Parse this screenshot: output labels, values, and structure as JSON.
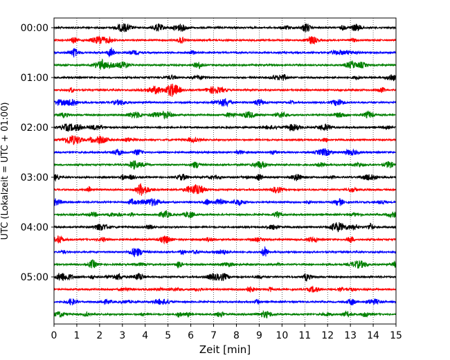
{
  "chart_data": {
    "type": "line",
    "title": "",
    "xlabel": "Zeit  [min]",
    "ylabel": "UTC (Lokalzeit = UTC + 01:00)",
    "xlim": [
      0,
      15
    ],
    "x_ticks": [
      "0",
      "1",
      "2",
      "3",
      "4",
      "5",
      "6",
      "7",
      "8",
      "9",
      "10",
      "11",
      "12",
      "13",
      "14",
      "15"
    ],
    "y_ticks": [
      "00:00",
      "01:00",
      "02:00",
      "03:00",
      "04:00",
      "05:00"
    ],
    "trace_interval_min": 15,
    "trace_colors": [
      "#000000",
      "#ff0000",
      "#0000ff",
      "#008000"
    ],
    "traces": [
      {
        "start": "00:00",
        "color": "#000000"
      },
      {
        "start": "00:15",
        "color": "#ff0000"
      },
      {
        "start": "00:30",
        "color": "#0000ff"
      },
      {
        "start": "00:45",
        "color": "#008000"
      },
      {
        "start": "01:00",
        "color": "#000000"
      },
      {
        "start": "01:15",
        "color": "#ff0000"
      },
      {
        "start": "01:30",
        "color": "#0000ff"
      },
      {
        "start": "01:45",
        "color": "#008000"
      },
      {
        "start": "02:00",
        "color": "#000000"
      },
      {
        "start": "02:15",
        "color": "#ff0000"
      },
      {
        "start": "02:30",
        "color": "#0000ff"
      },
      {
        "start": "02:45",
        "color": "#008000"
      },
      {
        "start": "03:00",
        "color": "#000000"
      },
      {
        "start": "03:15",
        "color": "#ff0000"
      },
      {
        "start": "03:30",
        "color": "#0000ff"
      },
      {
        "start": "03:45",
        "color": "#008000"
      },
      {
        "start": "04:00",
        "color": "#000000"
      },
      {
        "start": "04:15",
        "color": "#ff0000"
      },
      {
        "start": "04:30",
        "color": "#0000ff"
      },
      {
        "start": "04:45",
        "color": "#008000"
      },
      {
        "start": "05:00",
        "color": "#000000"
      },
      {
        "start": "05:15",
        "color": "#ff0000"
      },
      {
        "start": "05:30",
        "color": "#0000ff"
      },
      {
        "start": "05:45",
        "color": "#008000"
      }
    ],
    "vertical_grid": "dotted",
    "legend": "none"
  }
}
